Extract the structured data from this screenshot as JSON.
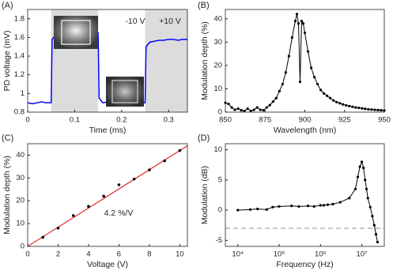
{
  "chart_data": [
    {
      "type": "line",
      "panel_label": "(A)",
      "x_label": "Time (ms)",
      "y_label": "PD voltage (mV)",
      "x": [
        0,
        0.01,
        0.02,
        0.03,
        0.04,
        0.05,
        0.052,
        0.06,
        0.07,
        0.08,
        0.09,
        0.1,
        0.11,
        0.12,
        0.13,
        0.14,
        0.15,
        0.152,
        0.16,
        0.17,
        0.18,
        0.19,
        0.2,
        0.21,
        0.22,
        0.23,
        0.24,
        0.25,
        0.252,
        0.26,
        0.27,
        0.28,
        0.29,
        0.3,
        0.31,
        0.32,
        0.33,
        0.34
      ],
      "values": [
        0.9,
        0.89,
        0.9,
        0.91,
        0.9,
        0.9,
        1.58,
        1.63,
        1.64,
        1.65,
        1.64,
        1.65,
        1.66,
        1.65,
        1.66,
        1.65,
        1.65,
        0.95,
        0.9,
        0.91,
        0.9,
        0.89,
        0.9,
        0.9,
        0.91,
        0.9,
        0.9,
        0.9,
        1.5,
        1.55,
        1.56,
        1.57,
        1.57,
        1.58,
        1.58,
        1.57,
        1.58,
        1.58
      ],
      "color": "#0000ff",
      "markers": false,
      "shaded_x": [
        [
          0.05,
          0.15
        ],
        [
          0.25,
          0.34
        ]
      ],
      "shade_color": "#dcdcdc",
      "annotations": [
        "-10 V",
        "+10 V"
      ],
      "xlim": [
        0,
        0.34
      ],
      "ylim": [
        0.8,
        1.9
      ],
      "xticks": [
        0,
        0.1,
        0.2,
        0.3
      ],
      "yticks": [
        0.8,
        1,
        1.2,
        1.4,
        1.6,
        1.8
      ]
    },
    {
      "type": "line",
      "panel_label": "(B)",
      "x_label": "Wavelength (nm)",
      "y_label": "Modulation depth (%)",
      "x": [
        850,
        852,
        854,
        856,
        858,
        860,
        862,
        864,
        866,
        868,
        870,
        872,
        874,
        876,
        878,
        880,
        882,
        884,
        886,
        888,
        890,
        892,
        894,
        895,
        896,
        897,
        898,
        899,
        900,
        902,
        904,
        906,
        908,
        910,
        912,
        914,
        916,
        918,
        920,
        922,
        924,
        926,
        928,
        930,
        932,
        934,
        936,
        938,
        940,
        942,
        944,
        946,
        948,
        950
      ],
      "values": [
        4,
        3.5,
        2,
        1,
        1.5,
        0.8,
        0.5,
        1.5,
        0.5,
        1,
        2,
        1,
        0.8,
        2,
        3,
        4.5,
        6,
        9,
        12,
        17,
        24,
        32,
        39,
        42,
        38,
        13,
        39,
        38,
        34,
        26,
        19,
        15,
        12,
        9.5,
        8,
        7,
        6,
        5,
        4.3,
        3.8,
        3.3,
        2.9,
        2.6,
        2.3,
        2,
        1.8,
        1.6,
        1.4,
        1.2,
        1.1,
        1,
        0.9,
        0.8,
        0.7
      ],
      "color": "#000000",
      "markers": true,
      "xlim": [
        850,
        950
      ],
      "ylim": [
        0,
        44
      ],
      "xticks": [
        850,
        875,
        900,
        925,
        950
      ],
      "yticks": [
        0,
        10,
        20,
        30,
        40
      ]
    },
    {
      "type": "scatter",
      "panel_label": "(C)",
      "x_label": "Voltage (V)",
      "y_label": "Modulation depth (%)",
      "x": [
        1,
        2,
        3,
        4,
        5,
        6,
        7,
        8,
        9,
        10
      ],
      "values": [
        4,
        8,
        13.5,
        17.5,
        22,
        27,
        29.5,
        33.5,
        37.5,
        42
      ],
      "color": "#000000",
      "fit": {
        "x": [
          0,
          10.5
        ],
        "values": [
          0,
          44.1
        ],
        "color": "#e00000"
      },
      "annotations": [
        "4.2 %/V"
      ],
      "xlim": [
        0,
        10.5
      ],
      "ylim": [
        0,
        45
      ],
      "xticks": [
        0,
        2,
        4,
        6,
        8,
        10
      ],
      "yticks": [
        0,
        10,
        20,
        30,
        40
      ]
    },
    {
      "type": "line",
      "panel_label": "(D)",
      "x_label": "Frequency (Hz)",
      "y_label": "Modulation (dB)",
      "x": [
        10000,
        20000,
        30000,
        50000,
        70000,
        100000,
        200000,
        300000,
        500000,
        700000,
        1000000,
        1200000,
        1500000,
        2000000,
        3000000,
        5000000,
        7000000,
        8000000,
        9000000,
        10000000,
        11000000,
        12000000,
        13000000,
        14000000,
        16000000,
        18000000,
        20000000,
        22000000,
        24000000
      ],
      "values": [
        0,
        0.1,
        0.2,
        0.1,
        0.5,
        0.6,
        0.7,
        0.6,
        0.7,
        0.6,
        0.8,
        0.8,
        0.9,
        1,
        1.3,
        2,
        3.5,
        5.5,
        7.2,
        8,
        7,
        5,
        3.5,
        2,
        0.5,
        -1,
        -2.5,
        -4,
        -5.3
      ],
      "color": "#000000",
      "markers": true,
      "xscale": "log",
      "reference_line": {
        "value": -3,
        "color": "#999999"
      },
      "xlim": [
        5000,
        35000000
      ],
      "ylim": [
        -6,
        11
      ],
      "xticks": [
        {
          "value": 10000,
          "label": "10⁴"
        },
        {
          "value": 100000,
          "label": "10⁵"
        },
        {
          "value": 1000000,
          "label": "10⁶"
        },
        {
          "value": 10000000,
          "label": "10⁷"
        }
      ],
      "yticks": [
        -5,
        0,
        5,
        10
      ]
    }
  ]
}
